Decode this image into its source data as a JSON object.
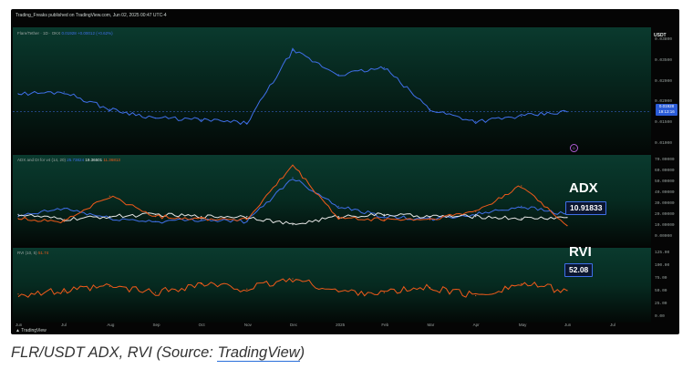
{
  "publisher_line": "Trading_Freaks published on TradingView.com, Jun 02, 2025 00:47 UTC-4",
  "price_pane": {
    "legend": "Flare/Tether · 1D · OKX",
    "legend_values": "0.01928 +0.00012 (+0.62%)",
    "unit": "USDT",
    "axis_ticks": [
      "0.03800",
      "0.03500",
      "0.02900",
      "0.02000",
      "0.01500",
      "0.01000"
    ],
    "last_value": "0.01928",
    "countdown": "19:13:16",
    "event_marker": "D"
  },
  "adx_pane": {
    "legend": "ADX and DI for v4 (14, 20)",
    "legend_values": [
      "25.73824",
      "19.36501",
      "11.36813"
    ],
    "axis_ticks": [
      "70.00000",
      "60.00000",
      "50.00000",
      "40.00000",
      "30.00000",
      "20.00000",
      "10.00000",
      "0.00000"
    ],
    "big_label": "ADX",
    "value_box": "10.91833"
  },
  "rvi_pane": {
    "legend": "RVI (10, 5)",
    "legend_values": "51.74",
    "axis_ticks": [
      "125.00",
      "100.00",
      "75.00",
      "50.00",
      "25.00",
      "0.00"
    ],
    "big_label": "RVI",
    "value_box": "52.08"
  },
  "time_axis": [
    "Jun",
    "Jul",
    "Aug",
    "Sep",
    "Oct",
    "Nov",
    "Dec",
    "2025",
    "Feb",
    "Mar",
    "Apr",
    "May",
    "Jun",
    "Jul"
  ],
  "footer_logo": "TradingView",
  "caption": {
    "prefix": "FLR/USDT ADX, RVI (Source: ",
    "link": "TradingView",
    "suffix": ")"
  },
  "colors": {
    "blue": "#3f6fe8",
    "white": "#e6e6e6",
    "orange": "#f05a1a"
  },
  "chart_data": [
    {
      "type": "line",
      "x": [
        "Jun",
        "Jul",
        "Aug",
        "Sep",
        "Oct",
        "Nov",
        "Dec",
        "2025",
        "Feb",
        "Mar",
        "Apr",
        "May",
        "Jun"
      ],
      "series": [
        {
          "name": "Flare/Tether",
          "values": [
            0.0245,
            0.025,
            0.02,
            0.0175,
            0.017,
            0.016,
            0.037,
            0.03,
            0.032,
            0.02,
            0.0165,
            0.018,
            0.0193
          ]
        }
      ],
      "ylim": [
        0.01,
        0.04
      ]
    },
    {
      "type": "line",
      "x": [
        "Jun",
        "Jul",
        "Aug",
        "Sep",
        "Oct",
        "Nov",
        "Dec",
        "2025",
        "Feb",
        "Mar",
        "Apr",
        "May",
        "Jun"
      ],
      "series": [
        {
          "values": [
            20,
            28,
            18,
            15,
            17,
            15,
            58,
            30,
            20,
            17,
            22,
            30,
            22
          ]
        },
        {
          "values": [
            22,
            17,
            20,
            22,
            20,
            20,
            12,
            20,
            22,
            20,
            20,
            18,
            19
          ]
        },
        {
          "values": [
            18,
            15,
            40,
            20,
            18,
            17,
            70,
            18,
            17,
            17,
            25,
            50,
            11
          ]
        }
      ],
      "ylim": [
        0,
        75
      ]
    },
    {
      "type": "line",
      "x": [
        "Jun",
        "Jul",
        "Aug",
        "Sep",
        "Oct",
        "Nov",
        "Dec",
        "2025",
        "Feb",
        "Mar",
        "Apr",
        "May",
        "Jun"
      ],
      "series": [
        {
          "name": "RVI",
          "values": [
            45,
            50,
            60,
            48,
            65,
            55,
            75,
            50,
            48,
            58,
            42,
            65,
            52
          ]
        }
      ],
      "ylim": [
        0,
        125
      ]
    }
  ]
}
